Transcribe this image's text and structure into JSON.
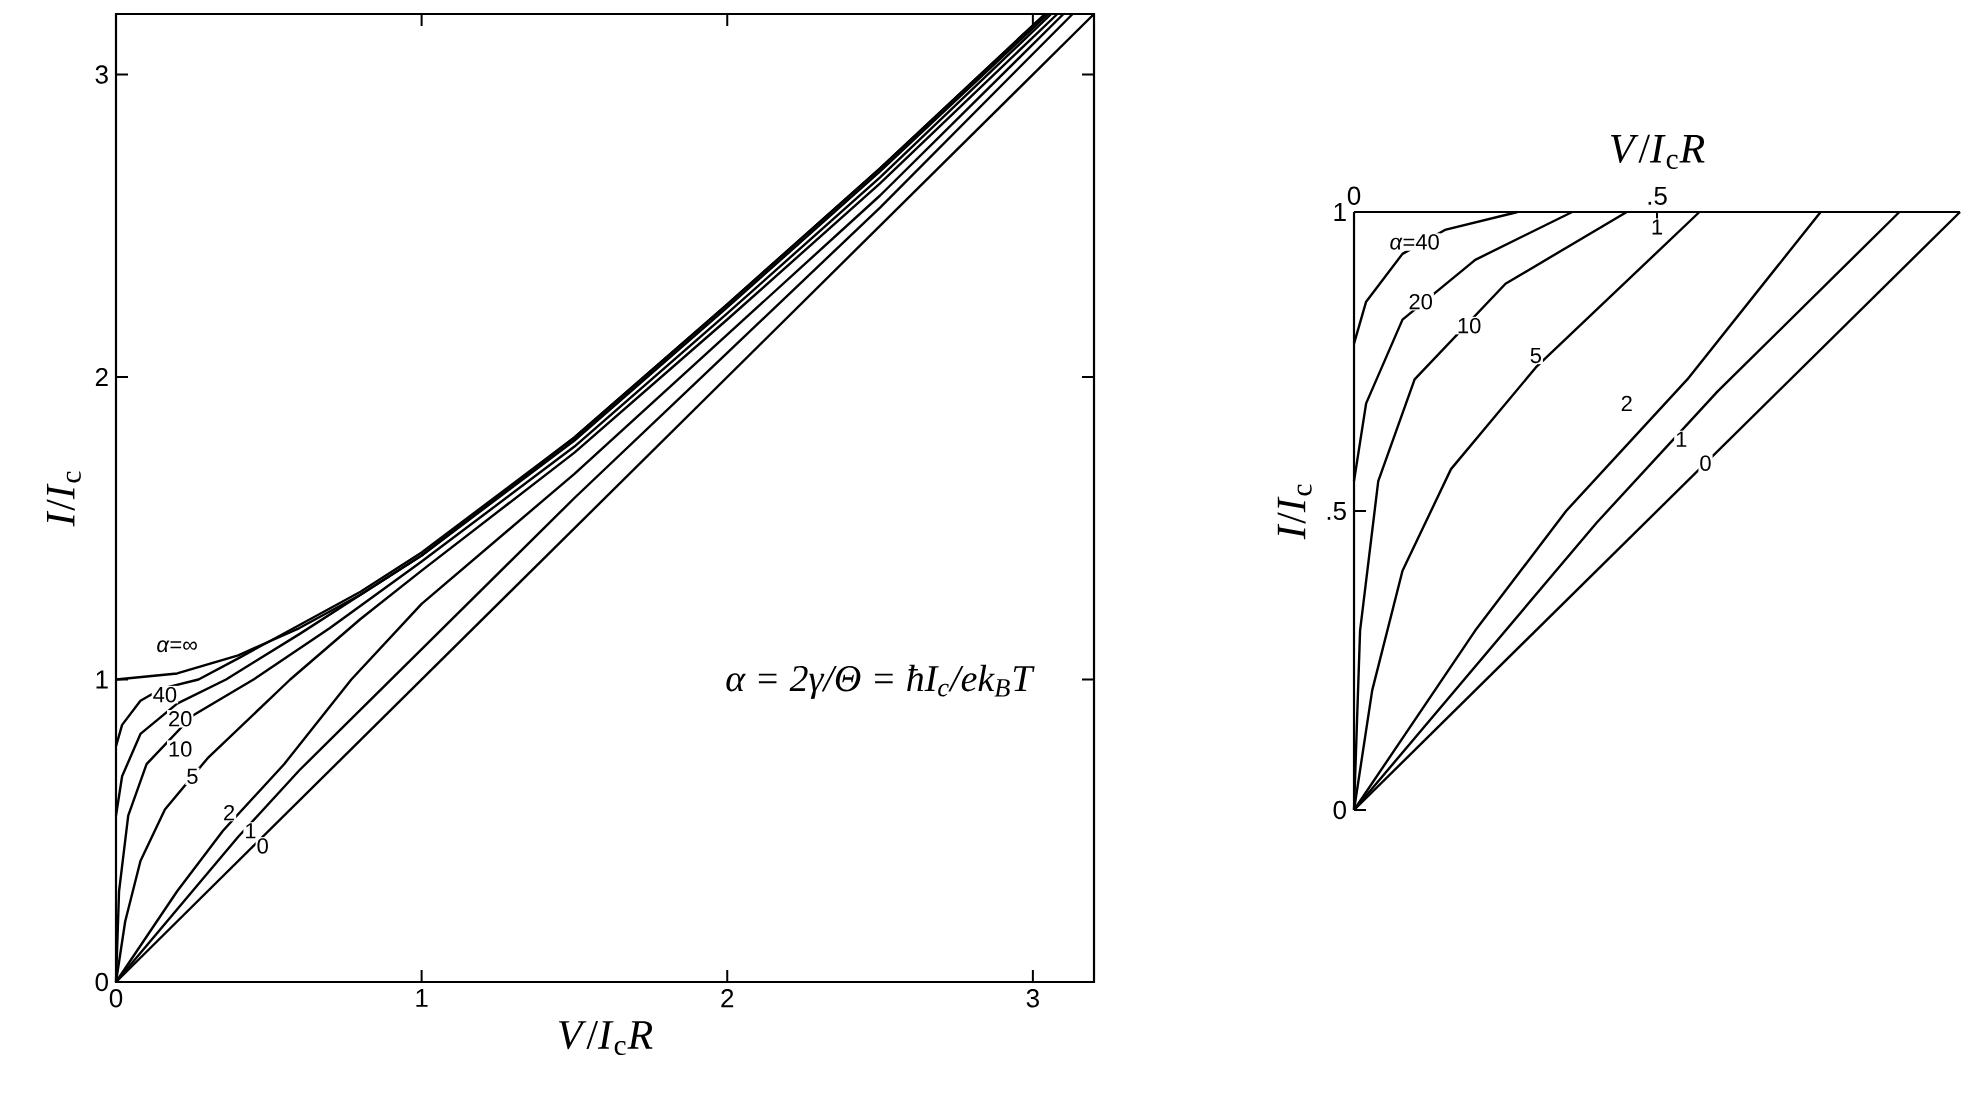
{
  "chart_data": [
    {
      "type": "line",
      "xlabel": "*V*/*I*$_{c}$*R*",
      "ylabel": "*I*/*I*$_{c}$",
      "xlim": [
        0,
        3.2
      ],
      "ylim": [
        0,
        3.2
      ],
      "xticks": [
        0,
        1,
        2,
        3
      ],
      "yticks": [
        0,
        1,
        2,
        3
      ],
      "series": [
        {
          "color": "#000000",
          "x": [
            0,
            0.2,
            0.4,
            0.6,
            0.8,
            1,
            1.5,
            2,
            2.5,
            3.04
          ],
          "values": [
            1,
            1.02,
            1.08,
            1.17,
            1.28,
            1.41,
            1.8,
            2.24,
            2.69,
            3.2
          ]
        },
        {
          "color": "#000000",
          "x": [
            0,
            0.02,
            0.08,
            0.15,
            0.27,
            0.4,
            0.6,
            0.8,
            1,
            1.5,
            2,
            2.5,
            3.04
          ],
          "values": [
            0.78,
            0.85,
            0.93,
            0.97,
            1.0,
            1.07,
            1.18,
            1.29,
            1.42,
            1.8,
            2.24,
            2.69,
            3.2
          ]
        },
        {
          "color": "#000000",
          "x": [
            0,
            0.02,
            0.08,
            0.2,
            0.36,
            0.6,
            0.8,
            1,
            1.5,
            2,
            2.5,
            3.05
          ],
          "values": [
            0.55,
            0.68,
            0.82,
            0.92,
            1.0,
            1.15,
            1.28,
            1.41,
            1.79,
            2.23,
            2.68,
            3.2
          ]
        },
        {
          "color": "#000000",
          "x": [
            0,
            0.01,
            0.04,
            0.1,
            0.25,
            0.45,
            0.7,
            1,
            1.5,
            2,
            2.5,
            3.06
          ],
          "values": [
            0,
            0.3,
            0.55,
            0.72,
            0.88,
            1.0,
            1.17,
            1.39,
            1.77,
            2.21,
            2.66,
            3.2
          ]
        },
        {
          "color": "#000000",
          "x": [
            0,
            0.03,
            0.08,
            0.16,
            0.3,
            0.57,
            0.8,
            1,
            1.5,
            2,
            2.5,
            3.08
          ],
          "values": [
            0,
            0.2,
            0.4,
            0.57,
            0.74,
            1.0,
            1.2,
            1.36,
            1.75,
            2.19,
            2.64,
            3.2
          ]
        },
        {
          "color": "#000000",
          "x": [
            0,
            0.1,
            0.2,
            0.35,
            0.55,
            0.77,
            1,
            1.5,
            2,
            2.5,
            3.1
          ],
          "values": [
            0,
            0.15,
            0.3,
            0.5,
            0.72,
            1.0,
            1.25,
            1.68,
            2.14,
            2.6,
            3.2
          ]
        },
        {
          "color": "#000000",
          "x": [
            0,
            0.2,
            0.4,
            0.6,
            0.9,
            1.5,
            2,
            2.5,
            3.13
          ],
          "values": [
            0,
            0.24,
            0.48,
            0.7,
            1.0,
            1.6,
            2.08,
            2.56,
            3.2
          ]
        },
        {
          "color": "#000000",
          "x": [
            0,
            3.2
          ],
          "values": [
            0,
            3.2
          ]
        }
      ],
      "annotations": [
        {
          "text": "*α*=∞",
          "x": 0.2,
          "y": 1.11
        },
        {
          "text": "40",
          "x": 0.16,
          "y": 0.95
        },
        {
          "text": "20",
          "x": 0.21,
          "y": 0.87
        },
        {
          "text": "10",
          "x": 0.21,
          "y": 0.77
        },
        {
          "text": "5",
          "x": 0.25,
          "y": 0.68
        },
        {
          "text": "2",
          "x": 0.37,
          "y": 0.56
        },
        {
          "text": "1",
          "x": 0.44,
          "y": 0.5
        },
        {
          "text": "0",
          "x": 0.48,
          "y": 0.45
        },
        "α = 2γ/Θ = ħI$_{c}$/ek$_{B}$T"
      ]
    },
    {
      "type": "line",
      "xlabel": "*V*/*I*$_{c}$*R*",
      "ylabel": "*I*/*I*$_{c}$",
      "xlim": [
        0,
        1
      ],
      "ylim": [
        0,
        1
      ],
      "xticks": [
        0,
        {
          "value": 0.5,
          "label": ".5"
        }
      ],
      "yticks": [
        0,
        {
          "value": 0.5,
          "label": ".5"
        },
        1
      ],
      "series": [
        {
          "color": "#000000",
          "x": [
            0,
            0.02,
            0.08,
            0.15,
            0.27
          ],
          "values": [
            0.78,
            0.85,
            0.93,
            0.97,
            1.0
          ]
        },
        {
          "color": "#000000",
          "x": [
            0,
            0.02,
            0.08,
            0.2,
            0.36
          ],
          "values": [
            0.55,
            0.68,
            0.82,
            0.92,
            1.0
          ]
        },
        {
          "color": "#000000",
          "x": [
            0,
            0.01,
            0.04,
            0.1,
            0.25,
            0.45
          ],
          "values": [
            0,
            0.3,
            0.55,
            0.72,
            0.88,
            1.0
          ]
        },
        {
          "color": "#000000",
          "x": [
            0,
            0.03,
            0.08,
            0.16,
            0.3,
            0.57
          ],
          "values": [
            0,
            0.2,
            0.4,
            0.57,
            0.74,
            1.0
          ]
        },
        {
          "color": "#000000",
          "x": [
            0,
            0.1,
            0.2,
            0.35,
            0.55,
            0.77
          ],
          "values": [
            0,
            0.15,
            0.3,
            0.5,
            0.72,
            1.0
          ]
        },
        {
          "color": "#000000",
          "x": [
            0,
            0.2,
            0.4,
            0.6,
            0.9
          ],
          "values": [
            0,
            0.24,
            0.48,
            0.7,
            1.0
          ]
        },
        {
          "color": "#000000",
          "x": [
            0,
            1
          ],
          "values": [
            0,
            1
          ]
        }
      ],
      "annotations": [
        {
          "text": "*α*=40",
          "x": 0.1,
          "y": 0.95
        },
        {
          "text": "20",
          "x": 0.11,
          "y": 0.85
        },
        {
          "text": "10",
          "x": 0.19,
          "y": 0.81
        },
        {
          "text": "5",
          "x": 0.3,
          "y": 0.76
        },
        {
          "text": "2",
          "x": 0.45,
          "y": 0.68
        },
        {
          "text": "1",
          "x": 0.54,
          "y": 0.62
        },
        {
          "text": "0",
          "x": 0.58,
          "y": 0.58
        },
        {
          "text": "1",
          "x": 0.5,
          "y": 0.975
        }
      ]
    }
  ]
}
